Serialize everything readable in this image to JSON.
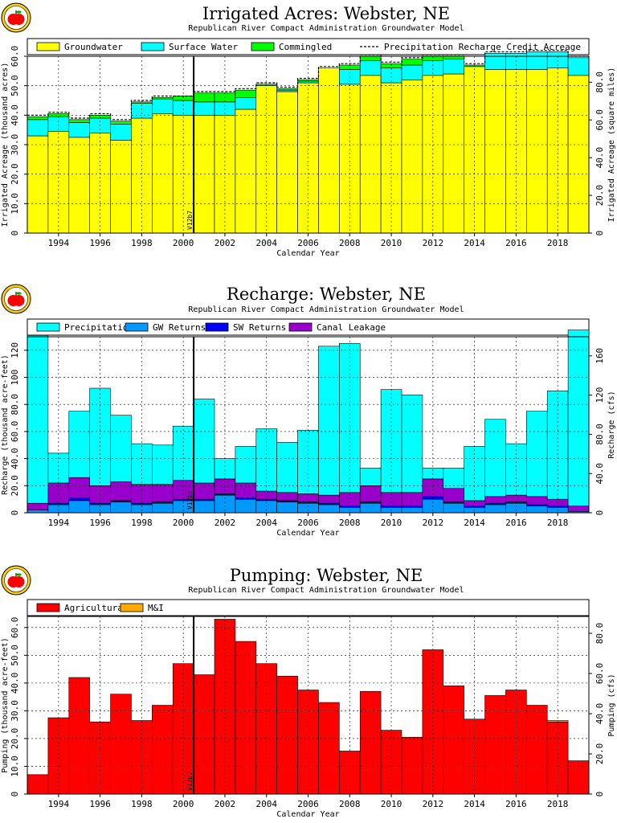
{
  "chart_data": [
    {
      "type": "bar",
      "stacked": true,
      "title": "Irrigated Acres: Webster, NE",
      "subtitle": "Republican River Compact Administration Groundwater Model",
      "xlabel": "Calendar Year",
      "ylabel": "Irrigated Acreage (thousand acres)",
      "y2label": "Irrigated Acreage (square miles)",
      "xlim": [
        1992.5,
        2019.5
      ],
      "ylim": [
        0,
        60
      ],
      "y2lim": [
        0,
        93.75
      ],
      "yticks": [
        0,
        10,
        20,
        30,
        40,
        50,
        60
      ],
      "ytick_labels": [
        "0",
        "10.0",
        "20.0",
        "30.0",
        "40.0",
        "50.0",
        "60.0"
      ],
      "y2ticks": [
        0,
        20,
        40,
        60,
        80
      ],
      "y2tick_labels": [
        "0",
        "20.0",
        "40.0",
        "60.0",
        "80.0"
      ],
      "xticks": [
        1994,
        1996,
        1998,
        2000,
        2002,
        2004,
        2006,
        2008,
        2010,
        2012,
        2014,
        2016,
        2018
      ],
      "xtick_labels": [
        "1994",
        "1996",
        "1998",
        "2000",
        "2002",
        "2004",
        "2006",
        "2008",
        "2010",
        "2012",
        "2014",
        "2016",
        "2018"
      ],
      "grid": true,
      "legend": "top",
      "marker_year": 2000.5,
      "marker_label": "V12b7",
      "x": [
        1993,
        1994,
        1995,
        1996,
        1997,
        1998,
        1999,
        2000,
        2001,
        2002,
        2003,
        2004,
        2005,
        2006,
        2007,
        2008,
        2009,
        2010,
        2011,
        2012,
        2013,
        2014,
        2015,
        2016,
        2017,
        2018,
        2019
      ],
      "series": [
        {
          "name": "Groundwater",
          "color": "#ffff00",
          "values": [
            33.0,
            34.5,
            32.5,
            34.0,
            31.5,
            39.0,
            40.5,
            40.0,
            40.0,
            40.0,
            42.0,
            50.0,
            48.0,
            51.0,
            56.0,
            50.5,
            53.5,
            51.0,
            52.0,
            53.5,
            54.0,
            56.5,
            55.5,
            55.5,
            55.5,
            56.0,
            53.5
          ]
        },
        {
          "name": "Surface Water",
          "color": "#00ffff",
          "values": [
            5.5,
            5.0,
            5.0,
            5.0,
            5.5,
            5.0,
            5.0,
            5.0,
            4.5,
            4.5,
            4.0,
            0.0,
            0.5,
            0.5,
            0.0,
            5.0,
            5.0,
            5.0,
            5.0,
            5.0,
            5.0,
            0.0,
            5.5,
            5.5,
            6.0,
            5.5,
            6.0
          ]
        },
        {
          "name": "Commingled",
          "color": "#00ff00",
          "values": [
            1.0,
            1.0,
            1.0,
            1.0,
            1.0,
            0.5,
            0.5,
            1.5,
            3.0,
            3.0,
            2.5,
            0.5,
            0.5,
            0.5,
            0.0,
            1.5,
            1.5,
            1.5,
            2.0,
            1.5,
            1.0,
            0.5,
            0.0,
            0.0,
            0.0,
            0.0,
            0.0
          ]
        }
      ],
      "credit_line": {
        "name": "Precipitation Recharge Credit Acreage",
        "values": [
          40.0,
          41.0,
          39.0,
          40.5,
          38.5,
          45.0,
          46.5,
          46.5,
          48.0,
          48.0,
          49.0,
          51.0,
          49.5,
          52.5,
          56.5,
          57.5,
          60.5,
          58.0,
          59.5,
          60.5,
          60.5,
          57.5,
          61.5,
          61.5,
          62.0,
          62.0,
          60.0
        ]
      }
    },
    {
      "type": "bar",
      "stacked": true,
      "title": "Recharge: Webster, NE",
      "subtitle": "Republican River Compact Administration Groundwater Model",
      "xlabel": "Calendar Year",
      "ylabel": "Recharge (thousand acre-feet)",
      "y2label": "Recharge (cfs)",
      "xlim": [
        1992.5,
        2019.5
      ],
      "ylim": [
        0,
        130
      ],
      "y2lim": [
        0,
        179.5
      ],
      "yticks": [
        0,
        20,
        40,
        60,
        80,
        100,
        120
      ],
      "ytick_labels": [
        "0",
        "20.0",
        "40.0",
        "60.0",
        "80.0",
        "100",
        "120"
      ],
      "y2ticks": [
        0,
        40,
        80,
        120,
        160
      ],
      "y2tick_labels": [
        "0",
        "40.0",
        "80.0",
        "120",
        "160"
      ],
      "xticks": [
        1994,
        1996,
        1998,
        2000,
        2002,
        2004,
        2006,
        2008,
        2010,
        2012,
        2014,
        2016,
        2018
      ],
      "xtick_labels": [
        "1994",
        "1996",
        "1998",
        "2000",
        "2002",
        "2004",
        "2006",
        "2008",
        "2010",
        "2012",
        "2014",
        "2016",
        "2018"
      ],
      "grid": true,
      "legend": "top",
      "marker_year": 2000.5,
      "marker_label": "V12b7",
      "x": [
        1993,
        1994,
        1995,
        1996,
        1997,
        1998,
        1999,
        2000,
        2001,
        2002,
        2003,
        2004,
        2005,
        2006,
        2007,
        2008,
        2009,
        2010,
        2011,
        2012,
        2013,
        2014,
        2015,
        2016,
        2017,
        2018,
        2019
      ],
      "series": [
        {
          "name": "GW Returns",
          "color": "#0099ff",
          "values": [
            2,
            6,
            9,
            6,
            8,
            6,
            7,
            9,
            9,
            13,
            10,
            9,
            8,
            7,
            6,
            4,
            7,
            4,
            4,
            10,
            7,
            4,
            6,
            7,
            5,
            4,
            1
          ]
        },
        {
          "name": "SW Returns",
          "color": "#0000ff",
          "values": [
            0,
            1,
            2,
            1,
            1,
            1,
            1,
            1,
            1,
            1,
            1,
            1,
            1,
            1,
            1,
            1,
            1,
            1,
            1,
            2,
            1,
            1,
            1,
            1,
            1,
            1,
            0
          ]
        },
        {
          "name": "Canal Leakage",
          "color": "#9900cc",
          "values": [
            5,
            15,
            15,
            13,
            14,
            14,
            13,
            14,
            12,
            11,
            11,
            6,
            6,
            6,
            6,
            10,
            12,
            10,
            10,
            13,
            10,
            4,
            5,
            5,
            6,
            5,
            4
          ]
        },
        {
          "name": "Precipitation",
          "color": "#00ffff",
          "values": [
            124,
            22,
            49,
            72,
            49,
            30,
            29,
            40,
            62,
            15,
            27,
            46,
            37,
            47,
            110,
            110,
            13,
            76,
            72,
            8,
            15,
            40,
            57,
            38,
            63,
            80,
            130
          ]
        }
      ]
    },
    {
      "type": "bar",
      "stacked": true,
      "title": "Pumping: Webster, NE",
      "subtitle": "Republican River Compact Administration Groundwater Model",
      "xlabel": "Calendar Year",
      "ylabel": "Pumping (thousand acre-feet)",
      "y2label": "Pumping (cfs)",
      "xlim": [
        1992.5,
        2019.5
      ],
      "ylim": [
        0,
        64
      ],
      "y2lim": [
        0,
        88.4
      ],
      "yticks": [
        0,
        10,
        20,
        30,
        40,
        50,
        60
      ],
      "ytick_labels": [
        "0",
        "10.0",
        "20.0",
        "30.0",
        "40.0",
        "50.0",
        "60.0"
      ],
      "y2ticks": [
        0,
        20,
        40,
        60,
        80
      ],
      "y2tick_labels": [
        "0",
        "20.0",
        "40.0",
        "60.0",
        "80.0"
      ],
      "xticks": [
        1994,
        1996,
        1998,
        2000,
        2002,
        2004,
        2006,
        2008,
        2010,
        2012,
        2014,
        2016,
        2018
      ],
      "xtick_labels": [
        "1994",
        "1996",
        "1998",
        "2000",
        "2002",
        "2004",
        "2006",
        "2008",
        "2010",
        "2012",
        "2014",
        "2016",
        "2018"
      ],
      "grid": true,
      "legend": "top",
      "marker_year": 2000.5,
      "marker_label": "V12b7",
      "x": [
        1993,
        1994,
        1995,
        1996,
        1997,
        1998,
        1999,
        2000,
        2001,
        2002,
        2003,
        2004,
        2005,
        2006,
        2007,
        2008,
        2009,
        2010,
        2011,
        2012,
        2013,
        2014,
        2015,
        2016,
        2017,
        2018,
        2019
      ],
      "series": [
        {
          "name": "Agricultural",
          "color": "#ff0000",
          "values": [
            7.0,
            27.5,
            42.0,
            26.0,
            36.0,
            26.5,
            32.0,
            47.0,
            43.0,
            63.0,
            55.0,
            47.0,
            42.5,
            37.5,
            33.0,
            15.5,
            37.0,
            23.0,
            20.5,
            52.0,
            39.0,
            27.0,
            35.5,
            37.5,
            32.0,
            26.0,
            12.0
          ]
        },
        {
          "name": "M&I",
          "color": "#ffaa00",
          "values": [
            0,
            0,
            0,
            0,
            0,
            0,
            0,
            0,
            0,
            0,
            0,
            0,
            0,
            0,
            0,
            0,
            0,
            0,
            0,
            0,
            0,
            0,
            0,
            0,
            0,
            0.5,
            0
          ]
        }
      ]
    }
  ]
}
